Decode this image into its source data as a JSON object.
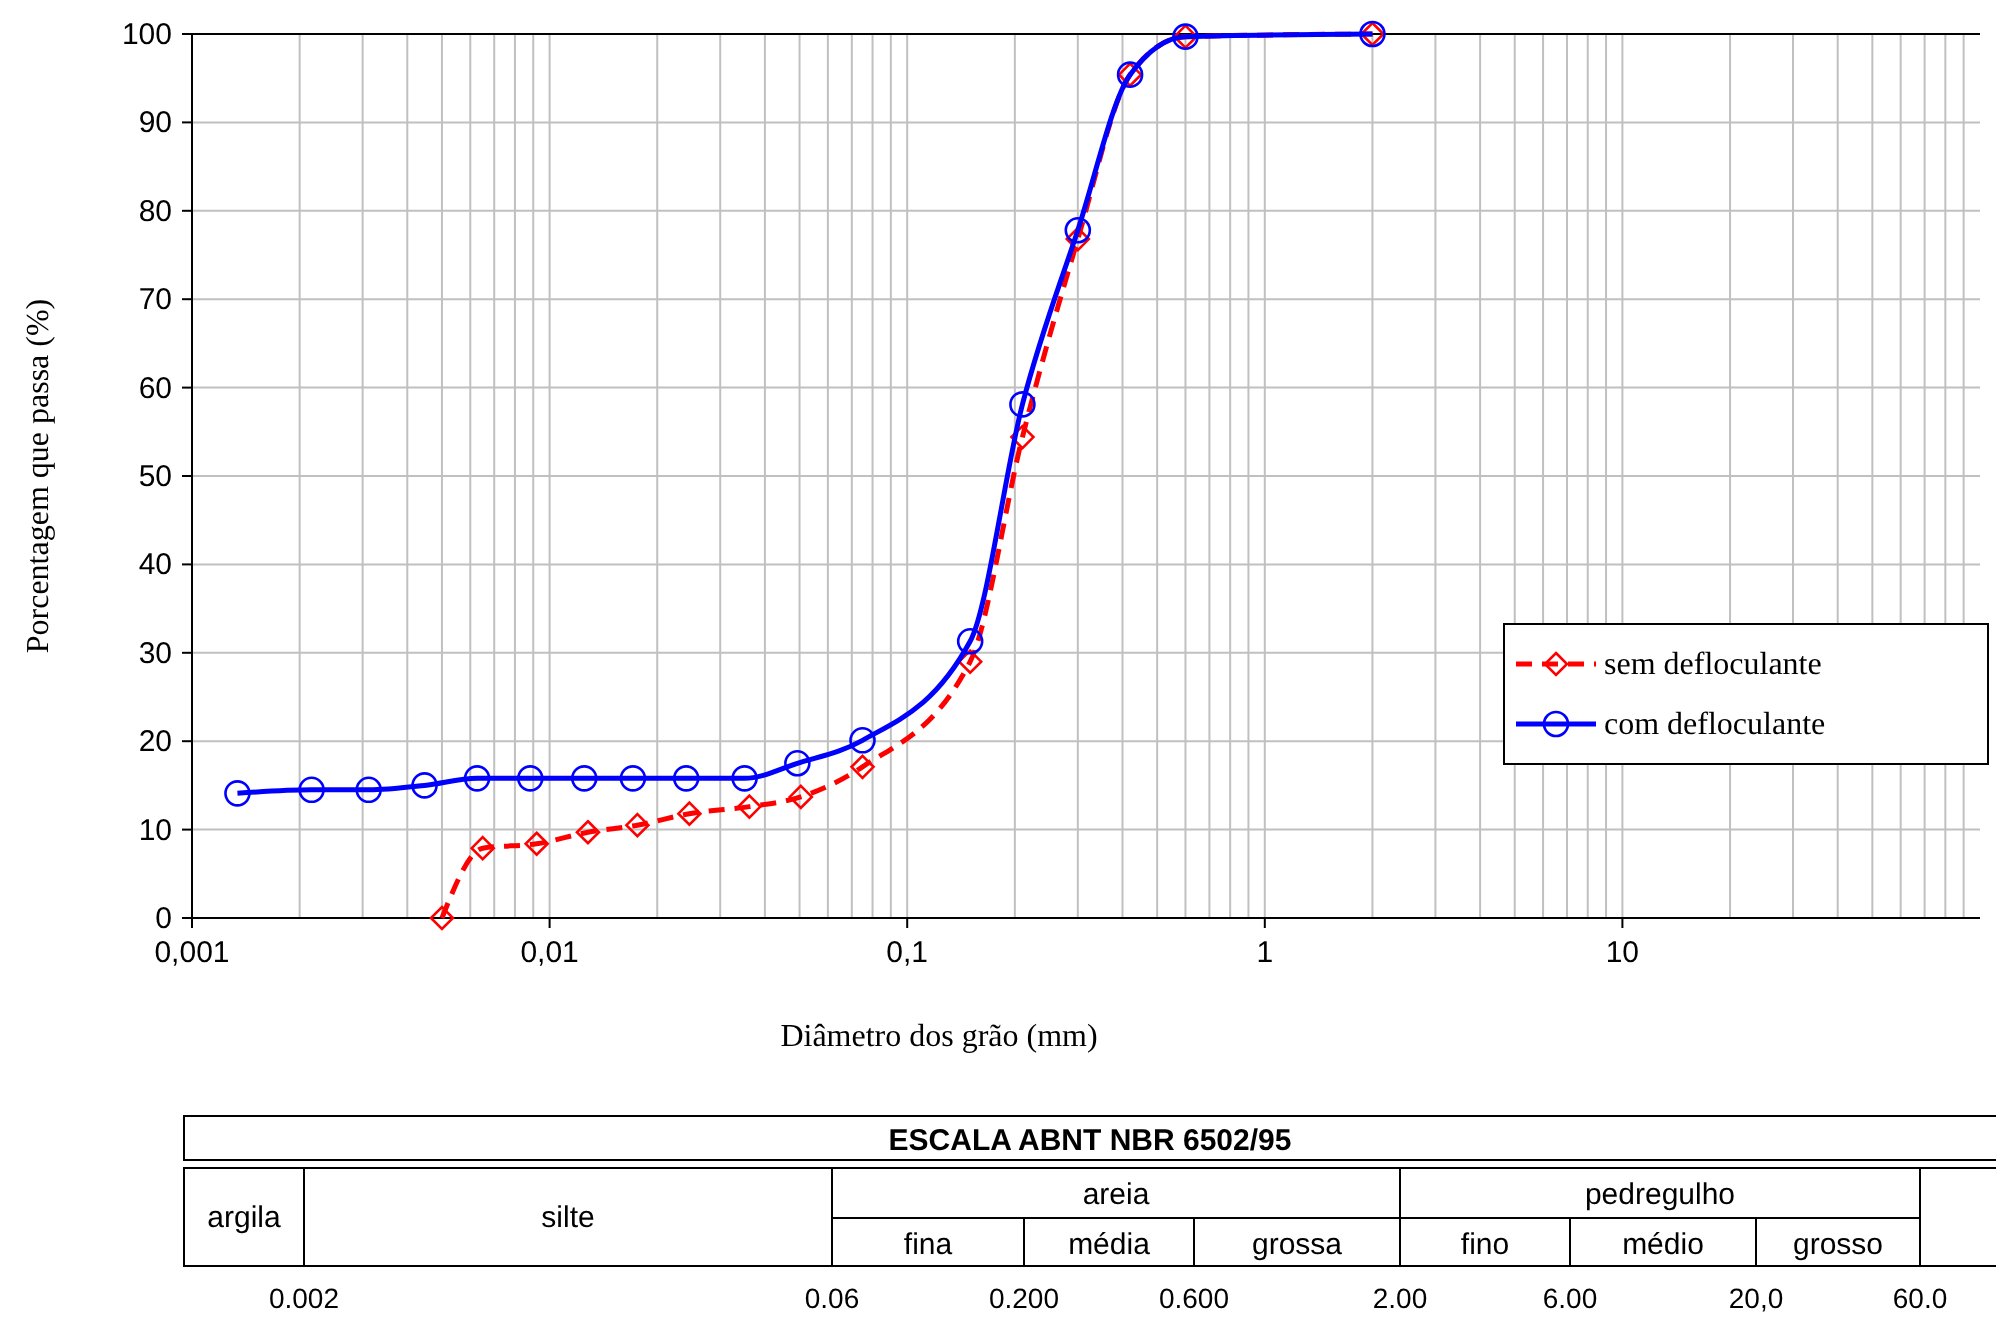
{
  "chart_data": [
    {
      "type": "line",
      "xlabel": "Diâmetro dos grão (mm)",
      "ylabel": "Porcentagem que passa (%)",
      "log": "x",
      "xlim": [
        0.001,
        100
      ],
      "ylim": [
        0,
        100
      ],
      "xticks": [
        {
          "value": 0.001,
          "label": "0,001"
        },
        {
          "value": 0.002,
          "label": null
        },
        {
          "value": 0.003,
          "label": null
        },
        {
          "value": 0.004,
          "label": null
        },
        {
          "value": 0.005,
          "label": null
        },
        {
          "value": 0.006,
          "label": null
        },
        {
          "value": 0.007,
          "label": null
        },
        {
          "value": 0.008,
          "label": null
        },
        {
          "value": 0.009,
          "label": null
        },
        {
          "value": 0.01,
          "label": "0,01"
        },
        {
          "value": 0.02,
          "label": null
        },
        {
          "value": 0.03,
          "label": null
        },
        {
          "value": 0.04,
          "label": null
        },
        {
          "value": 0.05,
          "label": null
        },
        {
          "value": 0.06,
          "label": null
        },
        {
          "value": 0.07,
          "label": null
        },
        {
          "value": 0.08,
          "label": null
        },
        {
          "value": 0.09,
          "label": null
        },
        {
          "value": 0.1,
          "label": "0,1"
        },
        {
          "value": 0.2,
          "label": null
        },
        {
          "value": 0.3,
          "label": null
        },
        {
          "value": 0.4,
          "label": null
        },
        {
          "value": 0.5,
          "label": null
        },
        {
          "value": 0.6,
          "label": null
        },
        {
          "value": 0.7,
          "label": null
        },
        {
          "value": 0.8,
          "label": null
        },
        {
          "value": 0.9,
          "label": null
        },
        {
          "value": 1,
          "label": "1"
        },
        {
          "value": 2,
          "label": null
        },
        {
          "value": 3,
          "label": null
        },
        {
          "value": 4,
          "label": null
        },
        {
          "value": 5,
          "label": null
        },
        {
          "value": 6,
          "label": null
        },
        {
          "value": 7,
          "label": null
        },
        {
          "value": 8,
          "label": null
        },
        {
          "value": 9,
          "label": null
        },
        {
          "value": 10,
          "label": "10"
        },
        {
          "value": 20,
          "label": null
        },
        {
          "value": 30,
          "label": null
        },
        {
          "value": 40,
          "label": null
        },
        {
          "value": 50,
          "label": null
        },
        {
          "value": 60,
          "label": null
        },
        {
          "value": 70,
          "label": null
        },
        {
          "value": 80,
          "label": null
        },
        {
          "value": 90,
          "label": null
        }
      ],
      "yticks": [
        0,
        10,
        20,
        30,
        40,
        50,
        60,
        70,
        80,
        90,
        100
      ],
      "grid": true,
      "legend": "right",
      "series": [
        {
          "name": "sem defloculante",
          "color": "#ff0000",
          "line_style": "dashed",
          "marker": "diamond",
          "x": [
            0.005,
            0.0065,
            0.0092,
            0.0128,
            0.0176,
            0.0246,
            0.0362,
            0.0504,
            0.075,
            0.15,
            0.21,
            0.3,
            0.42,
            0.6,
            2.0
          ],
          "values": [
            0,
            7.9,
            8.4,
            9.7,
            10.5,
            11.8,
            12.6,
            13.7,
            17.1,
            29,
            54.4,
            76.8,
            95.4,
            99.7,
            100
          ]
        },
        {
          "name": "com defloculante",
          "color": "#0000ff",
          "line_style": "solid",
          "marker": "circle",
          "x": [
            0.00134,
            0.00216,
            0.00312,
            0.00447,
            0.00627,
            0.00883,
            0.0125,
            0.0171,
            0.0241,
            0.0351,
            0.0493,
            0.075,
            0.15,
            0.21,
            0.3,
            0.42,
            0.6,
            2.0
          ],
          "values": [
            14.1,
            14.5,
            14.5,
            15,
            15.8,
            15.8,
            15.8,
            15.8,
            15.8,
            15.8,
            17.5,
            20.1,
            31.3,
            58.1,
            77.8,
            95.4,
            99.7,
            100
          ]
        }
      ]
    },
    {
      "type": "other",
      "title": "ESCALA ABNT  NBR 6502/95",
      "annotations": [
        "argila",
        "silte",
        "areia",
        "pedregulho",
        "fina",
        "média",
        "grossa",
        "fino",
        "médio",
        "grosso",
        "0.002",
        "0.06",
        "0.200",
        "0.600",
        "2.00",
        "6.00",
        "20,0",
        "60.0"
      ]
    }
  ]
}
